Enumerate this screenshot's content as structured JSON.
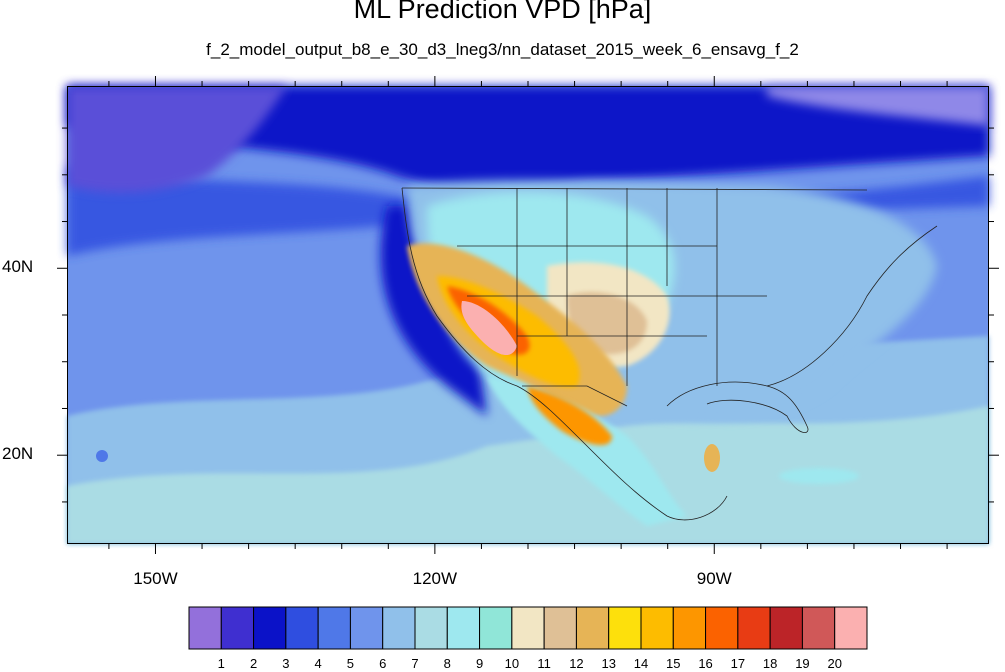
{
  "title": "ML Prediction VPD [hPa]",
  "subtitle": "f_2_model_output_b8_e_30_d3_lneg3/nn_dataset_2015_week_6_ensavg_f_2",
  "axes": {
    "lon_ticks": [
      {
        "value": -150,
        "label": "150W"
      },
      {
        "value": -120,
        "label": "120W"
      },
      {
        "value": -90,
        "label": "90W"
      }
    ],
    "lat_ticks": [
      {
        "value": 40,
        "label": "40N"
      },
      {
        "value": 20,
        "label": "20N"
      }
    ],
    "lon_range": [
      -159.5,
      -60.5
    ],
    "lat_range": [
      10.5,
      59.5
    ]
  },
  "colorbar": {
    "labels": [
      "1",
      "2",
      "3",
      "4",
      "5",
      "6",
      "7",
      "8",
      "9",
      "10",
      "11",
      "12",
      "13",
      "14",
      "15",
      "16",
      "17",
      "18",
      "19",
      "20"
    ],
    "colors": [
      "#9370db",
      "#3f2fd0",
      "#0b12c8",
      "#2f4ee0",
      "#4f78e8",
      "#6f94ec",
      "#90c0ea",
      "#aadce4",
      "#9ee8ef",
      "#90e6d8",
      "#f2e6c4",
      "#dfc096",
      "#e6b456",
      "#fde00c",
      "#fdbc00",
      "#fd9600",
      "#fb6200",
      "#e83c14",
      "#bc2428",
      "#d05858",
      "#fbb0b0"
    ]
  }
}
